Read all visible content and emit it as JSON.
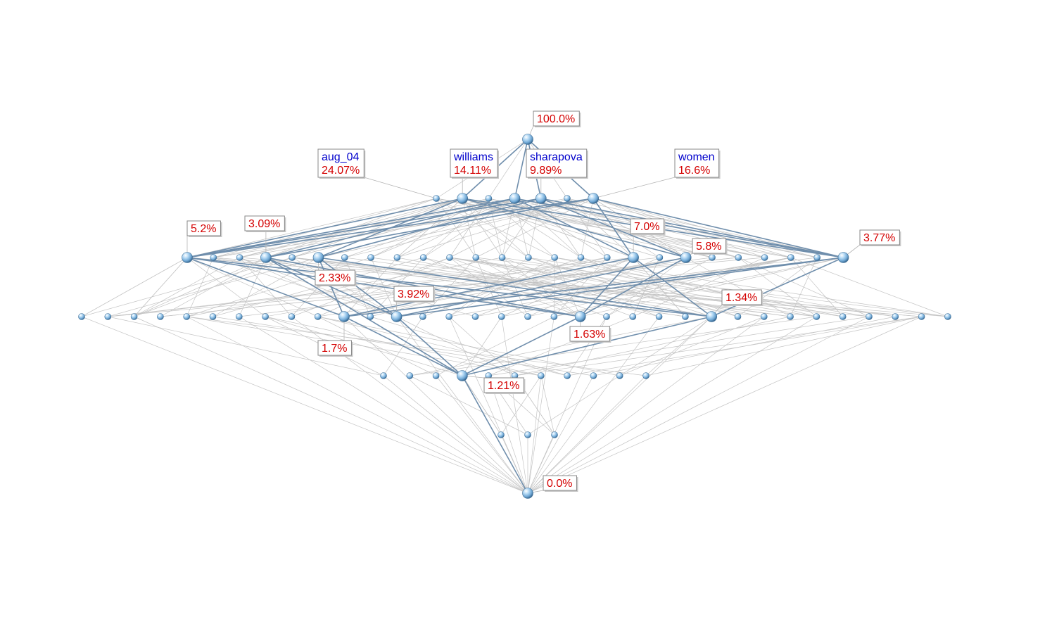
{
  "diagram": {
    "type": "concept-lattice",
    "colors": {
      "node": "#8fc0e8",
      "edge_main": "#6f8eac",
      "edge_thin": "#c4c4c4",
      "label_name": "#0000cc",
      "label_pct": "#d40000"
    },
    "labels": [
      {
        "id": "top",
        "pct": "100.0%"
      },
      {
        "id": "aug_04",
        "name": "aug_04",
        "pct": "24.07%"
      },
      {
        "id": "williams",
        "name": "williams",
        "pct": "14.11%"
      },
      {
        "id": "sharapova",
        "name": "sharapova",
        "pct": "9.89%"
      },
      {
        "id": "women",
        "name": "women",
        "pct": "16.6%"
      },
      {
        "id": "l2a",
        "pct": "5.2%"
      },
      {
        "id": "l2b",
        "pct": "3.09%"
      },
      {
        "id": "l2c",
        "pct": "7.0%"
      },
      {
        "id": "l2d",
        "pct": "5.8%"
      },
      {
        "id": "l2e",
        "pct": "3.77%"
      },
      {
        "id": "l2f",
        "pct": "2.33%"
      },
      {
        "id": "l3a",
        "pct": "3.92%"
      },
      {
        "id": "l3b",
        "pct": "1.34%"
      },
      {
        "id": "l3c",
        "pct": "1.63%"
      },
      {
        "id": "l3d",
        "pct": "1.7%"
      },
      {
        "id": "l4a",
        "pct": "1.21%"
      },
      {
        "id": "bottom",
        "pct": "0.0%"
      }
    ]
  }
}
